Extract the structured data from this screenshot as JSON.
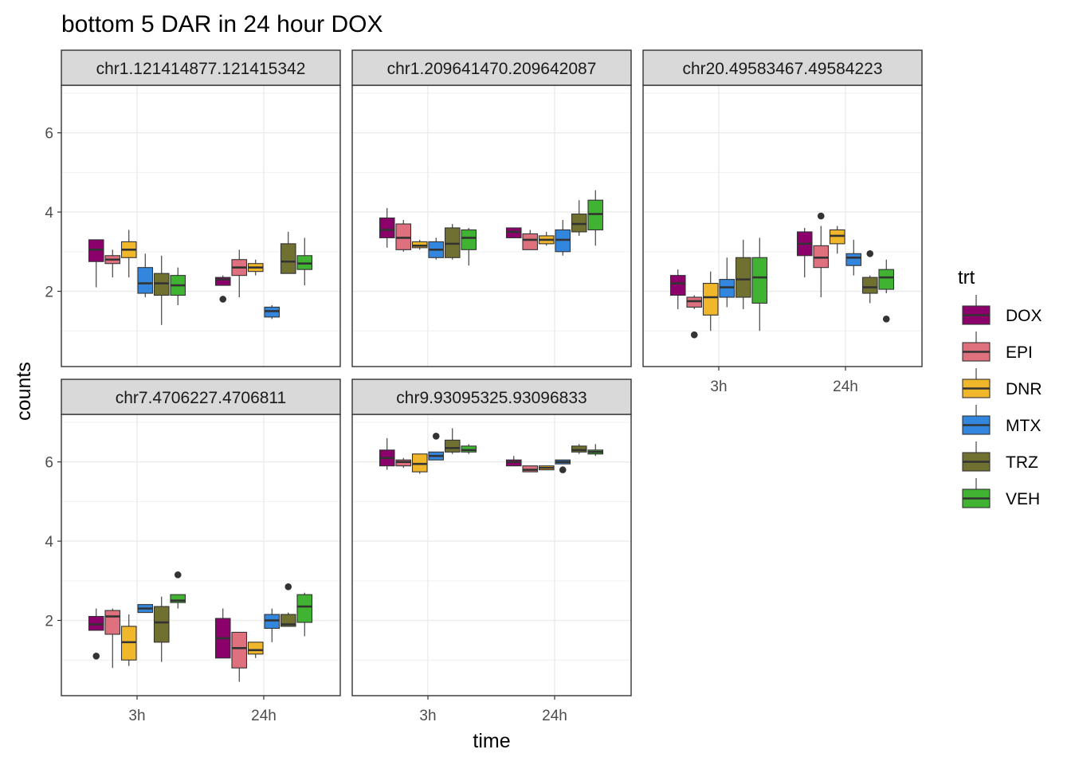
{
  "chart_data": {
    "type": "boxplot",
    "title": "bottom 5 DAR in 24 hour DOX",
    "xlabel": "time",
    "ylabel": "counts",
    "categories": [
      "3h",
      "24h"
    ],
    "y_ticks": [
      2,
      4,
      6
    ],
    "ylim": [
      0.1,
      7.2
    ],
    "grid": true,
    "legend": {
      "title": "trt",
      "placement": "right",
      "entries": [
        {
          "name": "DOX",
          "color": "#8B006B"
        },
        {
          "name": "EPI",
          "color": "#DF707E"
        },
        {
          "name": "DNR",
          "color": "#F1B72B"
        },
        {
          "name": "MTX",
          "color": "#3386DD"
        },
        {
          "name": "TRZ",
          "color": "#707031"
        },
        {
          "name": "VEH",
          "color": "#41B333"
        }
      ]
    },
    "panels": [
      {
        "label": "chr1.121414877.121415342",
        "boxes": [
          {
            "time": "3h",
            "trt": "DOX",
            "whisker_low": 2.1,
            "q1": 2.75,
            "median": 3.05,
            "q3": 3.3,
            "whisker_high": 3.3,
            "outliers": []
          },
          {
            "time": "3h",
            "trt": "EPI",
            "whisker_low": 2.35,
            "q1": 2.7,
            "median": 2.8,
            "q3": 2.9,
            "whisker_high": 3.05,
            "outliers": []
          },
          {
            "time": "3h",
            "trt": "DNR",
            "whisker_low": 2.35,
            "q1": 2.85,
            "median": 3.05,
            "q3": 3.25,
            "whisker_high": 3.55,
            "outliers": []
          },
          {
            "time": "3h",
            "trt": "MTX",
            "whisker_low": 1.85,
            "q1": 1.95,
            "median": 2.2,
            "q3": 2.6,
            "whisker_high": 2.95,
            "outliers": []
          },
          {
            "time": "3h",
            "trt": "TRZ",
            "whisker_low": 1.15,
            "q1": 1.9,
            "median": 2.2,
            "q3": 2.45,
            "whisker_high": 2.9,
            "outliers": []
          },
          {
            "time": "3h",
            "trt": "VEH",
            "whisker_low": 1.65,
            "q1": 1.9,
            "median": 2.15,
            "q3": 2.4,
            "whisker_high": 2.6,
            "outliers": []
          },
          {
            "time": "24h",
            "trt": "DOX",
            "whisker_low": 2.15,
            "q1": 2.15,
            "median": 2.3,
            "q3": 2.35,
            "whisker_high": 2.4,
            "outliers": [
              1.8
            ]
          },
          {
            "time": "24h",
            "trt": "EPI",
            "whisker_low": 1.85,
            "q1": 2.4,
            "median": 2.6,
            "q3": 2.8,
            "whisker_high": 3.05,
            "outliers": []
          },
          {
            "time": "24h",
            "trt": "DNR",
            "whisker_low": 2.4,
            "q1": 2.5,
            "median": 2.6,
            "q3": 2.7,
            "whisker_high": 2.8,
            "outliers": []
          },
          {
            "time": "24h",
            "trt": "MTX",
            "whisker_low": 1.3,
            "q1": 1.35,
            "median": 1.5,
            "q3": 1.6,
            "whisker_high": 1.65,
            "outliers": []
          },
          {
            "time": "24h",
            "trt": "TRZ",
            "whisker_low": 2.45,
            "q1": 2.45,
            "median": 2.75,
            "q3": 3.2,
            "whisker_high": 3.5,
            "outliers": []
          },
          {
            "time": "24h",
            "trt": "VEH",
            "whisker_low": 2.15,
            "q1": 2.55,
            "median": 2.7,
            "q3": 2.9,
            "whisker_high": 3.35,
            "outliers": []
          }
        ]
      },
      {
        "label": "chr1.209641470.209642087",
        "boxes": [
          {
            "time": "3h",
            "trt": "DOX",
            "whisker_low": 3.1,
            "q1": 3.35,
            "median": 3.55,
            "q3": 3.85,
            "whisker_high": 4.1,
            "outliers": []
          },
          {
            "time": "3h",
            "trt": "EPI",
            "whisker_low": 3.0,
            "q1": 3.05,
            "median": 3.35,
            "q3": 3.7,
            "whisker_high": 3.8,
            "outliers": []
          },
          {
            "time": "3h",
            "trt": "DNR",
            "whisker_low": 3.05,
            "q1": 3.1,
            "median": 3.15,
            "q3": 3.25,
            "whisker_high": 3.3,
            "outliers": []
          },
          {
            "time": "3h",
            "trt": "MTX",
            "whisker_low": 2.8,
            "q1": 2.85,
            "median": 3.05,
            "q3": 3.25,
            "whisker_high": 3.35,
            "outliers": []
          },
          {
            "time": "3h",
            "trt": "TRZ",
            "whisker_low": 2.8,
            "q1": 2.85,
            "median": 3.2,
            "q3": 3.6,
            "whisker_high": 3.7,
            "outliers": []
          },
          {
            "time": "3h",
            "trt": "VEH",
            "whisker_low": 2.65,
            "q1": 3.05,
            "median": 3.35,
            "q3": 3.55,
            "whisker_high": 3.6,
            "outliers": []
          },
          {
            "time": "24h",
            "trt": "DOX",
            "whisker_low": 3.35,
            "q1": 3.35,
            "median": 3.5,
            "q3": 3.6,
            "whisker_high": 3.6,
            "outliers": []
          },
          {
            "time": "24h",
            "trt": "EPI",
            "whisker_low": 3.05,
            "q1": 3.05,
            "median": 3.3,
            "q3": 3.45,
            "whisker_high": 3.55,
            "outliers": []
          },
          {
            "time": "24h",
            "trt": "DNR",
            "whisker_low": 3.15,
            "q1": 3.2,
            "median": 3.3,
            "q3": 3.4,
            "whisker_high": 3.5,
            "outliers": []
          },
          {
            "time": "24h",
            "trt": "MTX",
            "whisker_low": 2.9,
            "q1": 3.0,
            "median": 3.3,
            "q3": 3.55,
            "whisker_high": 3.8,
            "outliers": []
          },
          {
            "time": "24h",
            "trt": "TRZ",
            "whisker_low": 3.4,
            "q1": 3.5,
            "median": 3.7,
            "q3": 3.95,
            "whisker_high": 4.3,
            "outliers": []
          },
          {
            "time": "24h",
            "trt": "VEH",
            "whisker_low": 3.15,
            "q1": 3.55,
            "median": 3.95,
            "q3": 4.3,
            "whisker_high": 4.55,
            "outliers": []
          }
        ]
      },
      {
        "label": "chr20.49583467.49584223",
        "boxes": [
          {
            "time": "3h",
            "trt": "DOX",
            "whisker_low": 1.55,
            "q1": 1.9,
            "median": 2.2,
            "q3": 2.4,
            "whisker_high": 2.55,
            "outliers": []
          },
          {
            "time": "3h",
            "trt": "EPI",
            "whisker_low": 1.55,
            "q1": 1.6,
            "median": 1.75,
            "q3": 1.85,
            "whisker_high": 1.9,
            "outliers": [
              0.9
            ]
          },
          {
            "time": "3h",
            "trt": "DNR",
            "whisker_low": 1.0,
            "q1": 1.4,
            "median": 1.85,
            "q3": 2.2,
            "whisker_high": 2.5,
            "outliers": []
          },
          {
            "time": "3h",
            "trt": "MTX",
            "whisker_low": 1.6,
            "q1": 1.85,
            "median": 2.1,
            "q3": 2.3,
            "whisker_high": 2.85,
            "outliers": []
          },
          {
            "time": "3h",
            "trt": "TRZ",
            "whisker_low": 1.55,
            "q1": 1.85,
            "median": 2.3,
            "q3": 2.85,
            "whisker_high": 3.3,
            "outliers": []
          },
          {
            "time": "3h",
            "trt": "VEH",
            "whisker_low": 1.0,
            "q1": 1.7,
            "median": 2.35,
            "q3": 2.85,
            "whisker_high": 3.35,
            "outliers": []
          },
          {
            "time": "24h",
            "trt": "DOX",
            "whisker_low": 2.35,
            "q1": 2.9,
            "median": 3.2,
            "q3": 3.5,
            "whisker_high": 3.6,
            "outliers": []
          },
          {
            "time": "24h",
            "trt": "EPI",
            "whisker_low": 1.85,
            "q1": 2.6,
            "median": 2.85,
            "q3": 3.15,
            "whisker_high": 3.65,
            "outliers": [
              3.9
            ]
          },
          {
            "time": "24h",
            "trt": "DNR",
            "whisker_low": 2.95,
            "q1": 3.2,
            "median": 3.4,
            "q3": 3.55,
            "whisker_high": 3.65,
            "outliers": []
          },
          {
            "time": "24h",
            "trt": "MTX",
            "whisker_low": 2.4,
            "q1": 2.65,
            "median": 2.85,
            "q3": 2.95,
            "whisker_high": 3.3,
            "outliers": []
          },
          {
            "time": "24h",
            "trt": "TRZ",
            "whisker_low": 1.7,
            "q1": 1.95,
            "median": 2.1,
            "q3": 2.35,
            "whisker_high": 2.4,
            "outliers": [
              2.95
            ]
          },
          {
            "time": "24h",
            "trt": "VEH",
            "whisker_low": 1.95,
            "q1": 2.05,
            "median": 2.35,
            "q3": 2.55,
            "whisker_high": 2.8,
            "outliers": [
              1.3
            ]
          }
        ]
      },
      {
        "label": "chr7.4706227.4706811",
        "boxes": [
          {
            "time": "3h",
            "trt": "DOX",
            "whisker_low": 1.75,
            "q1": 1.75,
            "median": 1.9,
            "q3": 2.1,
            "whisker_high": 2.3,
            "outliers": [
              1.1
            ]
          },
          {
            "time": "3h",
            "trt": "EPI",
            "whisker_low": 0.8,
            "q1": 1.65,
            "median": 2.1,
            "q3": 2.25,
            "whisker_high": 2.3,
            "outliers": []
          },
          {
            "time": "3h",
            "trt": "DNR",
            "whisker_low": 0.85,
            "q1": 1.0,
            "median": 1.45,
            "q3": 1.85,
            "whisker_high": 2.15,
            "outliers": []
          },
          {
            "time": "3h",
            "trt": "MTX",
            "whisker_low": 2.2,
            "q1": 2.2,
            "median": 2.3,
            "q3": 2.4,
            "whisker_high": 2.4,
            "outliers": []
          },
          {
            "time": "3h",
            "trt": "TRZ",
            "whisker_low": 0.95,
            "q1": 1.45,
            "median": 1.95,
            "q3": 2.35,
            "whisker_high": 2.6,
            "outliers": []
          },
          {
            "time": "3h",
            "trt": "VEH",
            "whisker_low": 2.3,
            "q1": 2.45,
            "median": 2.5,
            "q3": 2.65,
            "whisker_high": 2.65,
            "outliers": [
              3.15
            ]
          },
          {
            "time": "24h",
            "trt": "DOX",
            "whisker_low": 1.05,
            "q1": 1.05,
            "median": 1.55,
            "q3": 2.05,
            "whisker_high": 2.3,
            "outliers": []
          },
          {
            "time": "24h",
            "trt": "EPI",
            "whisker_low": 0.45,
            "q1": 0.8,
            "median": 1.3,
            "q3": 1.7,
            "whisker_high": 1.7,
            "outliers": []
          },
          {
            "time": "24h",
            "trt": "DNR",
            "whisker_low": 1.05,
            "q1": 1.15,
            "median": 1.25,
            "q3": 1.45,
            "whisker_high": 1.45,
            "outliers": []
          },
          {
            "time": "24h",
            "trt": "MTX",
            "whisker_low": 1.45,
            "q1": 1.8,
            "median": 2.0,
            "q3": 2.15,
            "whisker_high": 2.3,
            "outliers": []
          },
          {
            "time": "24h",
            "trt": "TRZ",
            "whisker_low": 1.85,
            "q1": 1.85,
            "median": 1.9,
            "q3": 2.15,
            "whisker_high": 2.2,
            "outliers": [
              2.85
            ]
          },
          {
            "time": "24h",
            "trt": "VEH",
            "whisker_low": 1.6,
            "q1": 1.95,
            "median": 2.35,
            "q3": 2.65,
            "whisker_high": 2.7,
            "outliers": []
          }
        ]
      },
      {
        "label": "chr9.93095325.93096833",
        "boxes": [
          {
            "time": "3h",
            "trt": "DOX",
            "whisker_low": 5.8,
            "q1": 5.9,
            "median": 6.1,
            "q3": 6.3,
            "whisker_high": 6.6,
            "outliers": []
          },
          {
            "time": "3h",
            "trt": "EPI",
            "whisker_low": 5.85,
            "q1": 5.9,
            "median": 6.0,
            "q3": 6.05,
            "whisker_high": 6.1,
            "outliers": []
          },
          {
            "time": "3h",
            "trt": "DNR",
            "whisker_low": 5.7,
            "q1": 5.75,
            "median": 5.95,
            "q3": 6.2,
            "whisker_high": 6.2,
            "outliers": []
          },
          {
            "time": "3h",
            "trt": "MTX",
            "whisker_low": 6.05,
            "q1": 6.05,
            "median": 6.15,
            "q3": 6.25,
            "whisker_high": 6.25,
            "outliers": [
              6.65
            ]
          },
          {
            "time": "3h",
            "trt": "TRZ",
            "whisker_low": 6.2,
            "q1": 6.25,
            "median": 6.35,
            "q3": 6.55,
            "whisker_high": 6.85,
            "outliers": []
          },
          {
            "time": "3h",
            "trt": "VEH",
            "whisker_low": 6.2,
            "q1": 6.25,
            "median": 6.3,
            "q3": 6.4,
            "whisker_high": 6.45,
            "outliers": []
          },
          {
            "time": "24h",
            "trt": "DOX",
            "whisker_low": 5.9,
            "q1": 5.9,
            "median": 6.0,
            "q3": 6.05,
            "whisker_high": 6.15,
            "outliers": []
          },
          {
            "time": "24h",
            "trt": "EPI",
            "whisker_low": 5.75,
            "q1": 5.75,
            "median": 5.8,
            "q3": 5.9,
            "whisker_high": 5.9,
            "outliers": []
          },
          {
            "time": "24h",
            "trt": "DNR",
            "whisker_low": 5.8,
            "q1": 5.8,
            "median": 5.85,
            "q3": 5.9,
            "whisker_high": 5.9,
            "outliers": []
          },
          {
            "time": "24h",
            "trt": "MTX",
            "whisker_low": 5.95,
            "q1": 5.95,
            "median": 6.0,
            "q3": 6.05,
            "whisker_high": 6.05,
            "outliers": [
              5.8
            ]
          },
          {
            "time": "24h",
            "trt": "TRZ",
            "whisker_low": 6.2,
            "q1": 6.25,
            "median": 6.3,
            "q3": 6.4,
            "whisker_high": 6.45,
            "outliers": []
          },
          {
            "time": "24h",
            "trt": "VEH",
            "whisker_low": 6.15,
            "q1": 6.2,
            "median": 6.25,
            "q3": 6.3,
            "whisker_high": 6.45,
            "outliers": []
          }
        ]
      }
    ]
  }
}
